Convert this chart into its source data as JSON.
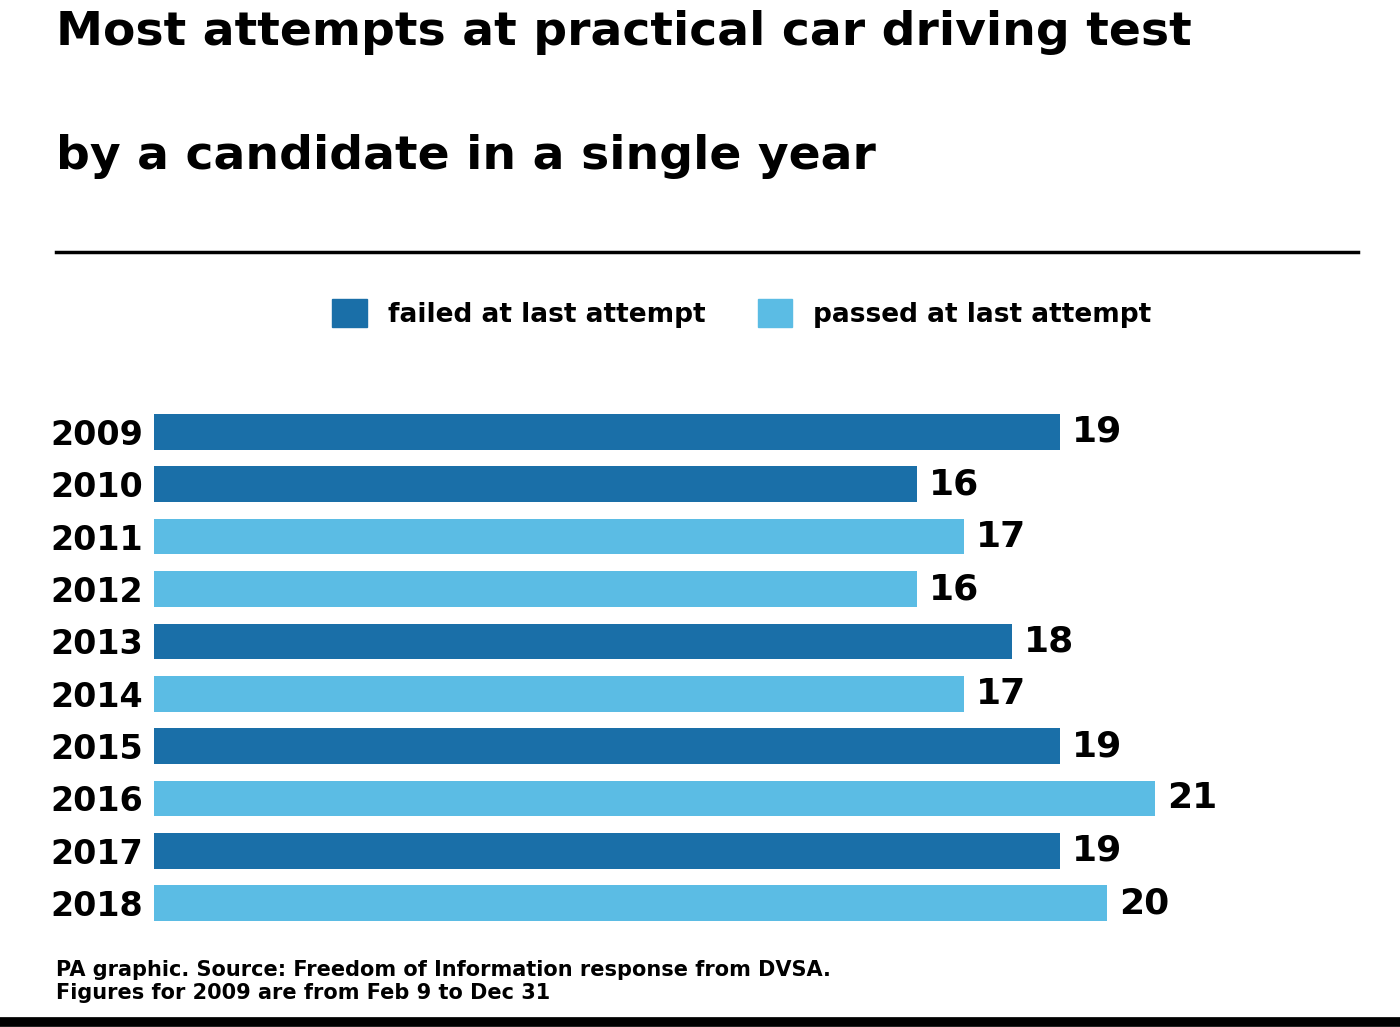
{
  "title_line1": "Most attempts at practical car driving test",
  "title_line2": "by a candidate in a single year",
  "years": [
    "2009",
    "2010",
    "2011",
    "2012",
    "2013",
    "2014",
    "2015",
    "2016",
    "2017",
    "2018"
  ],
  "values": [
    19,
    16,
    17,
    16,
    18,
    17,
    19,
    21,
    19,
    20
  ],
  "bar_types": [
    "failed",
    "failed",
    "passed",
    "passed",
    "failed",
    "passed",
    "failed",
    "passed",
    "failed",
    "passed"
  ],
  "color_failed": "#1a6fa8",
  "color_passed": "#5bbce4",
  "title_fontsize": 34,
  "tick_fontsize": 24,
  "value_fontsize": 26,
  "legend_fontsize": 19,
  "footer_fontsize": 15,
  "footer_text": "PA graphic. Source: Freedom of Information response from DVSA.\nFigures for 2009 are from Feb 9 to Dec 31",
  "background_color": "#ffffff",
  "xlim": [
    0,
    23.5
  ]
}
